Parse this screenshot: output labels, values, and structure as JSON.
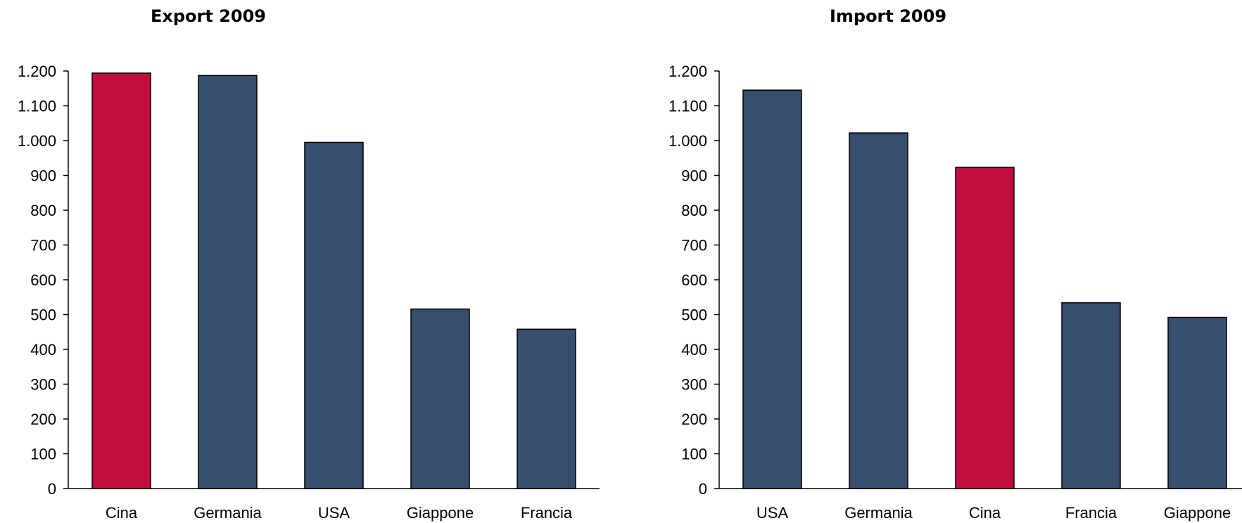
{
  "chart_data": [
    {
      "type": "bar",
      "title": "Export 2009",
      "categories": [
        "Cina",
        "Germania",
        "USA",
        "Giappone",
        "Francia"
      ],
      "values": [
        1194,
        1187,
        995,
        516,
        458
      ],
      "highlight_index": 0,
      "ylim": [
        0,
        1200
      ],
      "yticks": [
        0,
        100,
        200,
        300,
        400,
        500,
        600,
        700,
        800,
        900,
        1000,
        1100,
        1200
      ],
      "ytick_labels": [
        "0",
        "100",
        "200",
        "300",
        "400",
        "500",
        "600",
        "700",
        "800",
        "900",
        "1.000",
        "1.100",
        "1.200"
      ],
      "grid": false,
      "colors": {
        "default": "#374e6e",
        "highlight": "#c20e3c"
      }
    },
    {
      "type": "bar",
      "title": "Import 2009",
      "categories": [
        "USA",
        "Germania",
        "Cina",
        "Francia",
        "Giappone"
      ],
      "values": [
        1145,
        1022,
        923,
        534,
        492
      ],
      "highlight_index": 2,
      "ylim": [
        0,
        1200
      ],
      "yticks": [
        0,
        100,
        200,
        300,
        400,
        500,
        600,
        700,
        800,
        900,
        1000,
        1100,
        1200
      ],
      "ytick_labels": [
        "0",
        "100",
        "200",
        "300",
        "400",
        "500",
        "600",
        "700",
        "800",
        "900",
        "1.000",
        "1.100",
        "1.200"
      ],
      "grid": false,
      "colors": {
        "default": "#374e6e",
        "highlight": "#c20e3c"
      }
    }
  ]
}
